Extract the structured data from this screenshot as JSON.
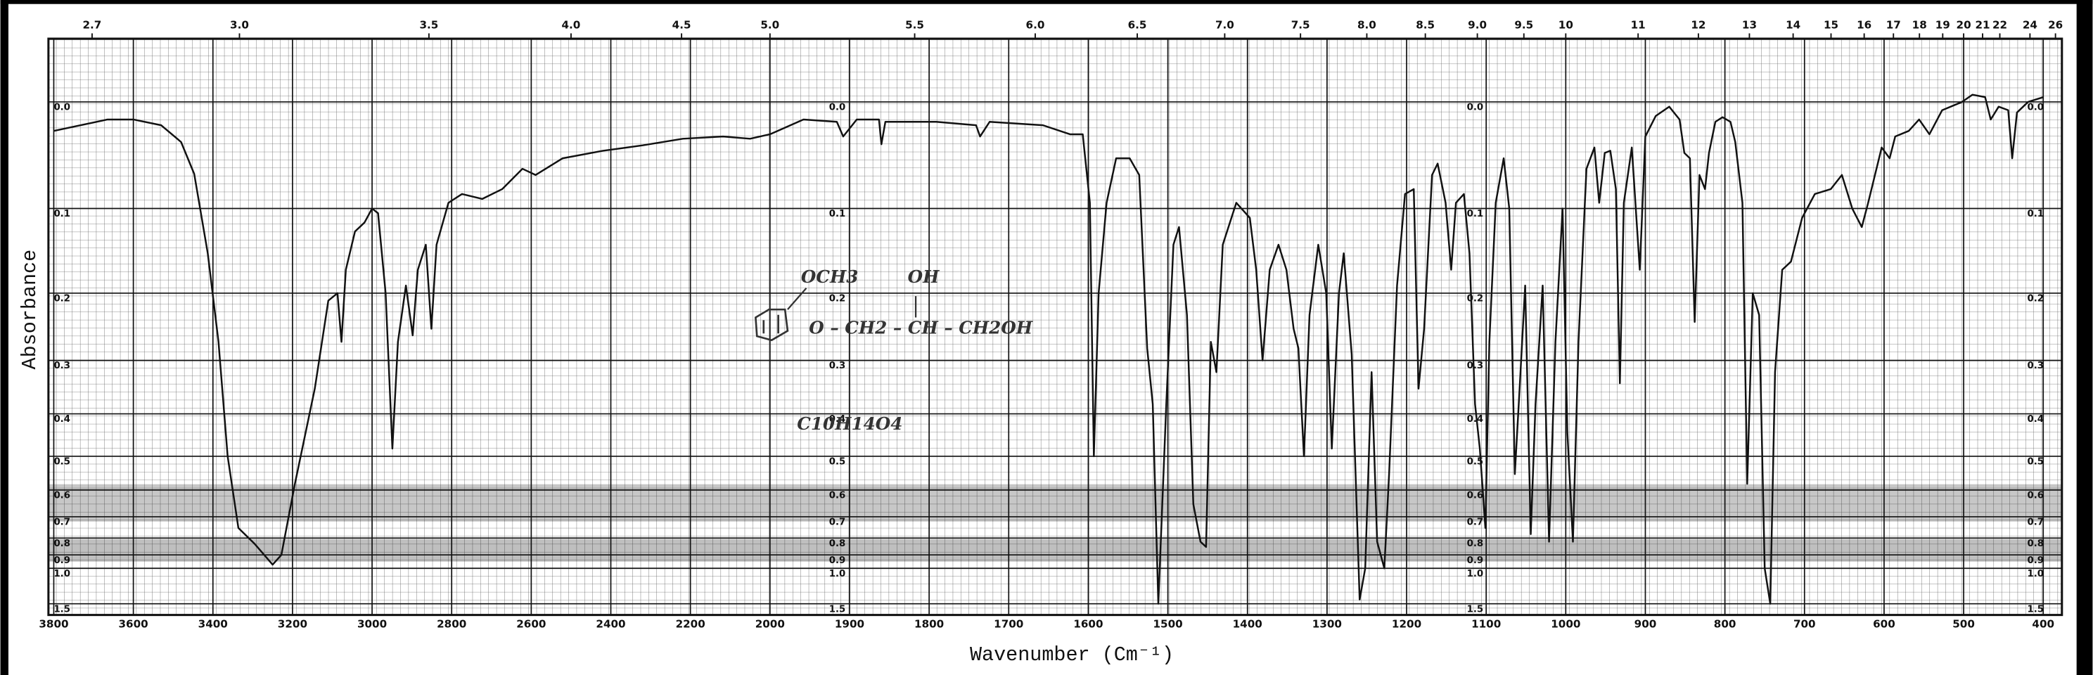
{
  "chart_data": {
    "type": "line",
    "ylabel": "Absorbance",
    "xlabel": "Wavenumber (Cm⁻¹)",
    "annotations": [
      "OCH3",
      "OH",
      "O – CH2 – CH – CH2OH",
      "C10H14O4"
    ],
    "xlim": [
      3800,
      400
    ],
    "xscale": {
      "break": 2000,
      "ratio": 2
    },
    "xticks": [
      3800,
      3600,
      3400,
      3200,
      3000,
      2800,
      2600,
      2400,
      2200,
      2000,
      1900,
      1800,
      1700,
      1600,
      1500,
      1400,
      1300,
      1200,
      1100,
      1000,
      900,
      800,
      700,
      600,
      500,
      400
    ],
    "x2ticks": [
      2.7,
      {
        "value": 3,
        "label": "3.0"
      },
      3.5,
      {
        "value": 4,
        "label": "4.0"
      },
      4.5,
      {
        "value": 5,
        "label": "5.0"
      },
      5.5,
      {
        "value": 6,
        "label": "6.0"
      },
      6.5,
      {
        "value": 7,
        "label": "7.0"
      },
      7.5,
      {
        "value": 8,
        "label": "8.0"
      },
      8.5,
      {
        "value": 9,
        "label": "9.0"
      },
      9.5,
      10,
      11,
      12,
      13,
      14,
      15,
      16,
      17,
      18,
      19,
      20,
      21,
      22,
      24,
      26
    ],
    "ylim": [
      2,
      -0.05
    ],
    "yscale": "transmittance",
    "yticks": [
      {
        "value": 0,
        "label": "0.0"
      },
      0.1,
      0.2,
      0.3,
      0.4,
      0.5,
      0.6,
      0.7,
      0.8,
      0.9,
      {
        "value": 1,
        "label": "1.0"
      },
      1.5
    ],
    "grid": true,
    "color": "#111111",
    "x": [
      3800,
      3665,
      3600,
      3530,
      3480,
      3447,
      3413,
      3386,
      3363,
      3336,
      3296,
      3250,
      3228,
      3194,
      3144,
      3110,
      3087,
      3077,
      3066,
      3043,
      3019,
      3000,
      2985,
      2966,
      2949,
      2935,
      2915,
      2898,
      2885,
      2865,
      2851,
      2838,
      2808,
      2774,
      2723,
      2673,
      2622,
      2589,
      2521,
      2420,
      2320,
      2219,
      2118,
      2050,
      2000,
      1958,
      1916,
      1908,
      1891,
      1863,
      1860,
      1855,
      1791,
      1741,
      1736,
      1724,
      1657,
      1623,
      1607,
      1598,
      1593,
      1587,
      1577,
      1565,
      1548,
      1536,
      1526,
      1519,
      1512,
      1502,
      1493,
      1486,
      1476,
      1468,
      1459,
      1452,
      1446,
      1439,
      1431,
      1414,
      1397,
      1389,
      1381,
      1372,
      1361,
      1351,
      1342,
      1336,
      1329,
      1322,
      1311,
      1301,
      1294,
      1285,
      1279,
      1269,
      1259,
      1252,
      1244,
      1237,
      1228,
      1222,
      1212,
      1202,
      1191,
      1185,
      1178,
      1168,
      1161,
      1151,
      1144,
      1138,
      1128,
      1121,
      1114,
      1108,
      1101,
      1096,
      1088,
      1078,
      1071,
      1064,
      1058,
      1051,
      1044,
      1038,
      1029,
      1021,
      1013,
      1004,
      998,
      991,
      984,
      974,
      964,
      958,
      951,
      944,
      937,
      932,
      927,
      917,
      907,
      900,
      887,
      870,
      857,
      851,
      844,
      838,
      832,
      825,
      820,
      812,
      803,
      793,
      787,
      778,
      772,
      765,
      757,
      750,
      743,
      737,
      728,
      717,
      703,
      687,
      667,
      653,
      640,
      628,
      620,
      603,
      593,
      586,
      569,
      556,
      543,
      527,
      502,
      489,
      473,
      466,
      456,
      444,
      439,
      433,
      419,
      400
    ],
    "values": [
      0.025,
      0.015,
      0.015,
      0.02,
      0.035,
      0.065,
      0.15,
      0.27,
      0.5,
      0.75,
      0.83,
      0.97,
      0.9,
      0.58,
      0.35,
      0.21,
      0.2,
      0.27,
      0.17,
      0.125,
      0.115,
      0.1,
      0.105,
      0.2,
      0.48,
      0.27,
      0.19,
      0.26,
      0.17,
      0.14,
      0.25,
      0.14,
      0.094,
      0.085,
      0.09,
      0.08,
      0.06,
      0.066,
      0.05,
      0.043,
      0.038,
      0.032,
      0.03,
      0.032,
      0.028,
      0.015,
      0.017,
      0.03,
      0.015,
      0.015,
      0.037,
      0.017,
      0.017,
      0.02,
      0.03,
      0.017,
      0.02,
      0.028,
      0.028,
      0.094,
      0.5,
      0.2,
      0.094,
      0.05,
      0.05,
      0.066,
      0.28,
      0.38,
      1.5,
      0.38,
      0.14,
      0.12,
      0.23,
      0.65,
      0.82,
      0.85,
      0.27,
      0.32,
      0.14,
      0.094,
      0.11,
      0.17,
      0.3,
      0.17,
      0.14,
      0.17,
      0.25,
      0.28,
      0.5,
      0.23,
      0.14,
      0.2,
      0.48,
      0.2,
      0.15,
      0.29,
      1.4,
      1.0,
      0.32,
      0.82,
      1.0,
      0.55,
      0.19,
      0.085,
      0.08,
      0.35,
      0.25,
      0.066,
      0.055,
      0.094,
      0.17,
      0.094,
      0.085,
      0.15,
      0.38,
      0.48,
      0.75,
      0.27,
      0.094,
      0.05,
      0.1,
      0.55,
      0.35,
      0.19,
      0.78,
      0.38,
      0.19,
      0.82,
      0.27,
      0.1,
      0.44,
      0.82,
      0.27,
      0.06,
      0.04,
      0.094,
      0.045,
      0.043,
      0.08,
      0.34,
      0.094,
      0.04,
      0.17,
      0.03,
      0.012,
      0.004,
      0.015,
      0.045,
      0.05,
      0.24,
      0.066,
      0.08,
      0.045,
      0.017,
      0.013,
      0.017,
      0.035,
      0.094,
      0.58,
      0.2,
      0.23,
      1.0,
      1.5,
      0.32,
      0.17,
      0.16,
      0.11,
      0.085,
      0.08,
      0.066,
      0.1,
      0.12,
      0.094,
      0.04,
      0.05,
      0.03,
      0.025,
      0.015,
      0.028,
      0.007,
      0,
      -0.006,
      -0.004,
      0.015,
      0.004,
      0.007,
      0.05,
      0.009,
      0,
      -0.004
    ]
  }
}
